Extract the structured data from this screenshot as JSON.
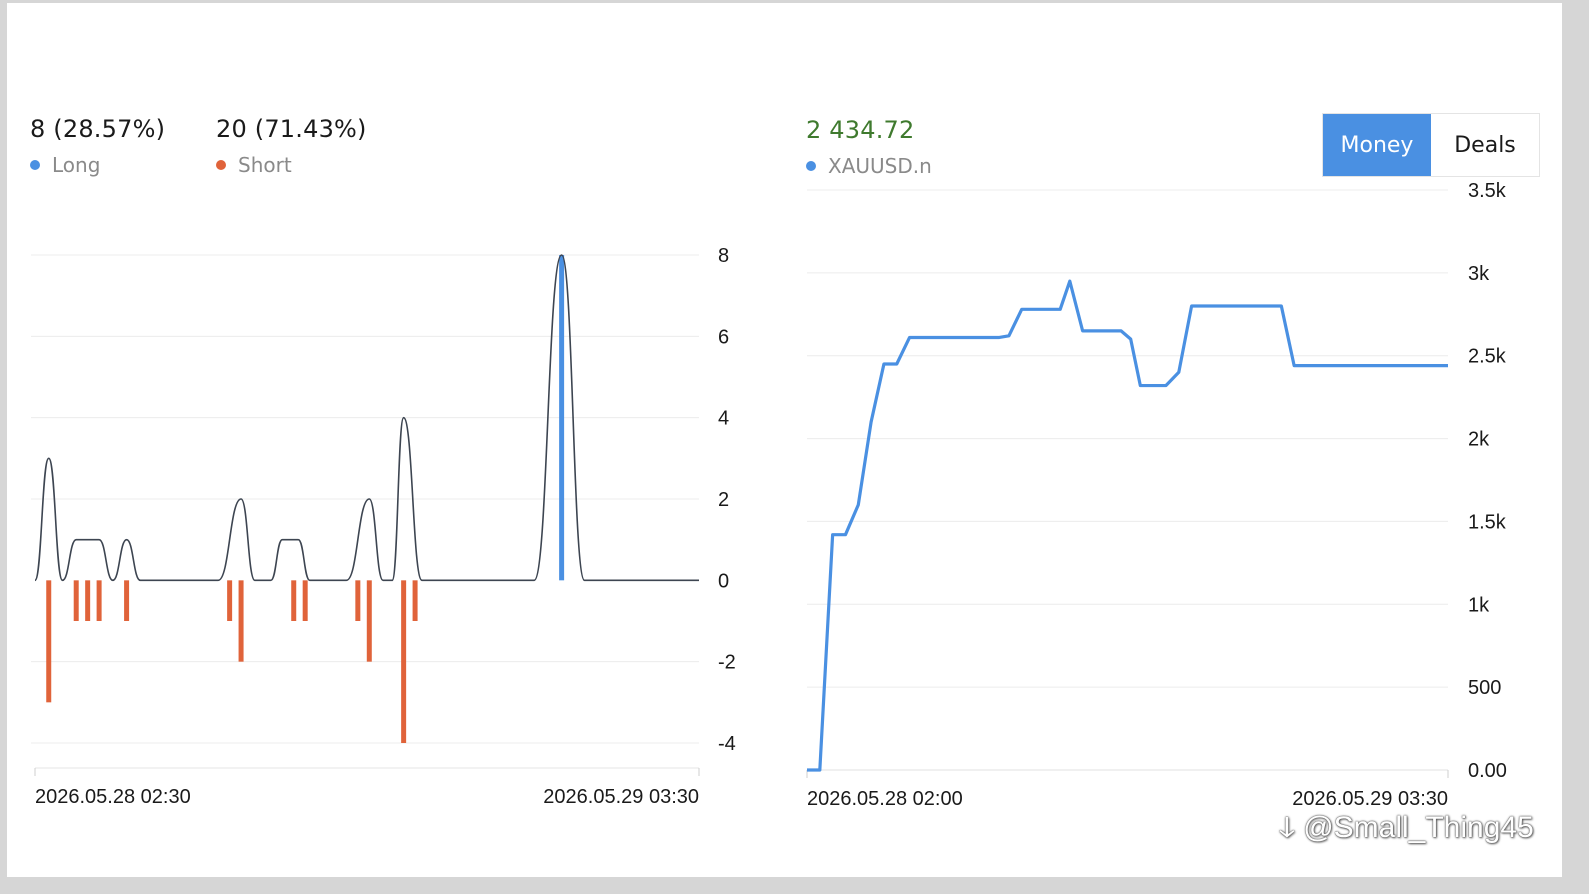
{
  "left_panel": {
    "long_value": "8 (28.57%)",
    "short_value": "20 (71.43%)",
    "long_label": "Long",
    "short_label": "Short",
    "colors": {
      "long": "#4a90e2",
      "short": "#e0633a",
      "line": "#3d4551"
    }
  },
  "right_panel": {
    "value": "2 434.72",
    "value_color": "#3f7a2e",
    "series_label": "XAUUSD.n",
    "series_color": "#4a90e2",
    "toggle": {
      "money": "Money",
      "deals": "Deals",
      "active": "money"
    }
  },
  "watermark": "@Small_Thing45",
  "chart_data": [
    {
      "type": "bar",
      "x_ticks": [
        "2026.05.28 02:30",
        "2026.05.29 03:30"
      ],
      "y_ticks": [
        "8",
        "6",
        "4",
        "2",
        "0",
        "-2",
        "-4"
      ],
      "ylim": [
        -4,
        8
      ],
      "series": [
        {
          "name": "Long",
          "points": [
            [
              23.0,
              8
            ]
          ]
        },
        {
          "name": "Short",
          "points": [
            [
              0.6,
              -3
            ],
            [
              1.8,
              -1
            ],
            [
              2.3,
              -1
            ],
            [
              2.8,
              -1
            ],
            [
              4.0,
              -1
            ],
            [
              8.5,
              -1
            ],
            [
              9.0,
              -2
            ],
            [
              11.3,
              -1
            ],
            [
              11.8,
              -1
            ],
            [
              14.1,
              -1
            ],
            [
              14.6,
              -2
            ],
            [
              16.1,
              -4
            ],
            [
              16.6,
              -1
            ]
          ]
        }
      ],
      "outline": [
        [
          0,
          0
        ],
        [
          0.6,
          3
        ],
        [
          1.2,
          0
        ],
        [
          1.8,
          1
        ],
        [
          2.8,
          1
        ],
        [
          3.4,
          0
        ],
        [
          4.0,
          1
        ],
        [
          4.6,
          0
        ],
        [
          8.0,
          0
        ],
        [
          9.0,
          2
        ],
        [
          9.6,
          0
        ],
        [
          10.3,
          0
        ],
        [
          10.8,
          1
        ],
        [
          11.5,
          1
        ],
        [
          12.0,
          0
        ],
        [
          13.6,
          0
        ],
        [
          14.6,
          2
        ],
        [
          15.2,
          0
        ],
        [
          15.6,
          0
        ],
        [
          16.1,
          4
        ],
        [
          16.9,
          0
        ],
        [
          21.8,
          0
        ],
        [
          23.0,
          8
        ],
        [
          24.0,
          0
        ],
        [
          29.0,
          0
        ]
      ],
      "xlim": [
        0,
        29
      ]
    },
    {
      "type": "line",
      "x_ticks": [
        "2026.05.28 02:00",
        "2026.05.29 03:30"
      ],
      "y_ticks": [
        "3.5k",
        "3k",
        "2.5k",
        "2k",
        "1.5k",
        "1k",
        "500",
        "0.00"
      ],
      "ylim": [
        0,
        3500
      ],
      "xlim": [
        0,
        100
      ],
      "series": [
        {
          "name": "XAUUSD.n",
          "points": [
            [
              0,
              0
            ],
            [
              2,
              0
            ],
            [
              4,
              1420
            ],
            [
              6,
              1420
            ],
            [
              8,
              1600
            ],
            [
              10,
              2100
            ],
            [
              12,
              2450
            ],
            [
              14,
              2450
            ],
            [
              16,
              2610
            ],
            [
              24,
              2610
            ],
            [
              30,
              2610
            ],
            [
              31.5,
              2620
            ],
            [
              33.5,
              2780
            ],
            [
              39.5,
              2780
            ],
            [
              41,
              2950
            ],
            [
              43,
              2650
            ],
            [
              49,
              2650
            ],
            [
              50.5,
              2600
            ],
            [
              52,
              2320
            ],
            [
              56,
              2320
            ],
            [
              58,
              2400
            ],
            [
              60,
              2800
            ],
            [
              74,
              2800
            ],
            [
              76,
              2440
            ],
            [
              100,
              2440
            ]
          ]
        }
      ]
    }
  ]
}
